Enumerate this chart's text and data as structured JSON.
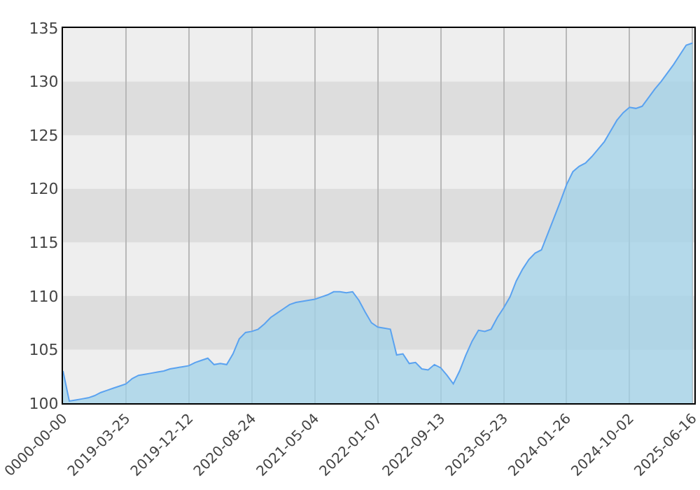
{
  "chart_data": {
    "type": "area",
    "categories": [
      "0000-00-00",
      null,
      null,
      null,
      null,
      null,
      null,
      null,
      null,
      null,
      "2019-03-25",
      null,
      null,
      null,
      null,
      null,
      null,
      null,
      null,
      null,
      "2019-12-12",
      null,
      null,
      null,
      null,
      null,
      null,
      null,
      null,
      null,
      "2020-08-24",
      null,
      null,
      null,
      null,
      null,
      null,
      null,
      null,
      null,
      "2021-05-04",
      null,
      null,
      null,
      null,
      null,
      null,
      null,
      null,
      null,
      "2022-01-07",
      null,
      null,
      null,
      null,
      null,
      null,
      null,
      null,
      null,
      "2022-09-13",
      null,
      null,
      null,
      null,
      null,
      null,
      null,
      null,
      null,
      "2023-05-23",
      null,
      null,
      null,
      null,
      null,
      null,
      null,
      null,
      null,
      "2024-01-26",
      null,
      null,
      null,
      null,
      null,
      null,
      null,
      null,
      null,
      "2024-10-02",
      null,
      null,
      null,
      null,
      null,
      null,
      null,
      null,
      null,
      "2025-06-16"
    ],
    "series": [
      {
        "color": "#5aa2f0",
        "values": [
          103.0,
          100.2,
          100.3,
          100.4,
          100.5,
          100.7,
          101.0,
          101.2,
          101.4,
          101.6,
          101.8,
          102.3,
          102.6,
          102.7,
          102.8,
          102.9,
          103.0,
          103.2,
          103.3,
          103.4,
          103.5,
          103.8,
          104.0,
          104.2,
          103.6,
          103.7,
          103.6,
          104.6,
          106.0,
          106.6,
          106.7,
          106.9,
          107.4,
          108.0,
          108.4,
          108.8,
          109.2,
          109.4,
          109.5,
          109.6,
          109.7,
          109.9,
          110.1,
          110.4,
          110.4,
          110.3,
          110.4,
          109.6,
          108.5,
          107.5,
          107.1,
          107.0,
          106.9,
          104.5,
          104.6,
          103.7,
          103.8,
          103.2,
          103.1,
          103.6,
          103.3,
          102.6,
          101.8,
          103.0,
          104.5,
          105.8,
          106.8,
          106.7,
          106.9,
          108.0,
          108.9,
          109.9,
          111.4,
          112.5,
          113.4,
          114.0,
          114.3,
          115.8,
          117.3,
          118.8,
          120.4,
          121.6,
          122.1,
          122.4,
          123.0,
          123.7,
          124.4,
          125.4,
          126.4,
          127.1,
          127.6,
          127.5,
          127.7,
          128.5,
          129.3,
          130.0,
          130.8,
          131.6,
          132.5,
          133.4,
          133.6
        ]
      }
    ],
    "ylim": [
      100,
      135
    ],
    "yticks": [
      100,
      105,
      110,
      115,
      120,
      125,
      130,
      135
    ],
    "bands": [
      {
        "axis": "y",
        "from": 105,
        "to": 110,
        "color": "#dddddd"
      },
      {
        "axis": "y",
        "from": 115,
        "to": 120,
        "color": "#dddddd"
      },
      {
        "axis": "y",
        "from": 125,
        "to": 130,
        "color": "#dddddd"
      }
    ],
    "grid": "x",
    "marker": "none",
    "line_style": "solid"
  }
}
